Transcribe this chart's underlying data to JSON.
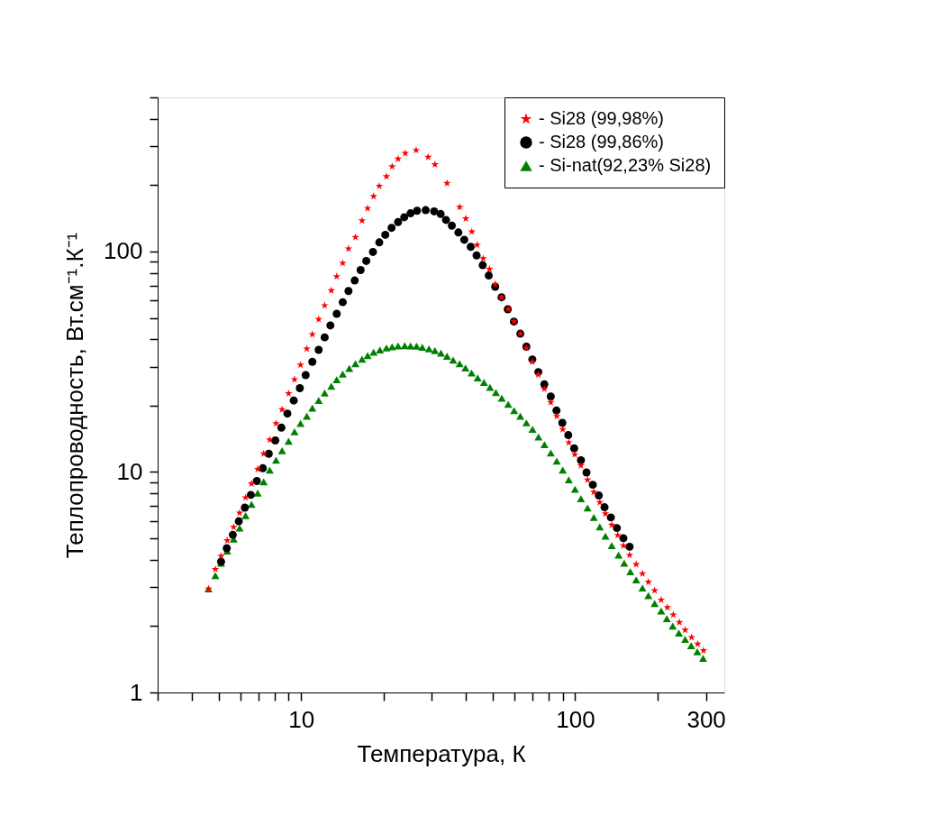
{
  "chart_data": {
    "type": "scatter",
    "xlabel": "Температура, К",
    "ylabel": "Теплопроводность, Вт.см⁻¹.К⁻¹",
    "log": "xy",
    "grid": false,
    "legend": "top right",
    "xlim": [
      3,
      350
    ],
    "ylim": [
      1,
      500
    ],
    "xticks": [
      {
        "value": 3,
        "label": null
      },
      {
        "value": 4,
        "label": null
      },
      {
        "value": 5,
        "label": null
      },
      {
        "value": 6,
        "label": null
      },
      {
        "value": 7,
        "label": null
      },
      {
        "value": 8,
        "label": null
      },
      {
        "value": 9,
        "label": null
      },
      10,
      {
        "value": 20,
        "label": null
      },
      {
        "value": 30,
        "label": null
      },
      {
        "value": 40,
        "label": null
      },
      {
        "value": 50,
        "label": null
      },
      {
        "value": 60,
        "label": null
      },
      {
        "value": 70,
        "label": null
      },
      {
        "value": 80,
        "label": null
      },
      {
        "value": 90,
        "label": null
      },
      100,
      {
        "value": 200,
        "label": null
      },
      300
    ],
    "yticks": [
      1,
      {
        "value": 2,
        "label": null
      },
      {
        "value": 3,
        "label": null
      },
      {
        "value": 4,
        "label": null
      },
      {
        "value": 5,
        "label": null
      },
      {
        "value": 6,
        "label": null
      },
      {
        "value": 7,
        "label": null
      },
      {
        "value": 8,
        "label": null
      },
      {
        "value": 9,
        "label": null
      },
      10,
      {
        "value": 20,
        "label": null
      },
      {
        "value": 30,
        "label": null
      },
      {
        "value": 40,
        "label": null
      },
      {
        "value": 50,
        "label": null
      },
      {
        "value": 60,
        "label": null
      },
      {
        "value": 70,
        "label": null
      },
      {
        "value": 80,
        "label": null
      },
      {
        "value": 90,
        "label": null
      },
      100,
      {
        "value": 200,
        "label": null
      },
      {
        "value": 300,
        "label": null
      },
      {
        "value": 400,
        "label": null
      },
      {
        "value": 500,
        "label": null
      }
    ],
    "series": [
      {
        "name": "- Si28 (99,98%)",
        "color": "#ff0000",
        "marker": "star",
        "x": [
          4.6,
          4.87,
          5.11,
          5.38,
          5.68,
          5.97,
          6.28,
          6.6,
          6.95,
          7.31,
          7.69,
          8.11,
          8.53,
          9.01,
          9.47,
          9.96,
          10.5,
          11.0,
          11.6,
          12.2,
          12.9,
          13.5,
          14.2,
          14.9,
          15.8,
          16.7,
          17.5,
          18.4,
          19.3,
          20.5,
          21.5,
          22.6,
          24.0,
          26.3,
          29.1,
          30.8,
          34.1,
          37.9,
          39.9,
          42.0,
          43.9,
          46.2,
          48.7,
          51.1,
          53.9,
          57.1,
          59.8,
          63.1,
          66.4,
          69.8,
          73.4,
          77.2,
          81.5,
          85.7,
          90.1,
          94.8,
          99.7,
          105,
          111,
          117,
          123,
          129,
          136,
          143,
          150,
          158,
          167,
          176,
          185,
          195,
          206,
          217,
          228,
          240,
          252,
          266,
          280,
          294
        ],
        "values": [
          2.95,
          3.62,
          4.16,
          4.89,
          5.62,
          6.52,
          7.65,
          8.85,
          10.3,
          12.1,
          14.0,
          16.6,
          19.2,
          22.7,
          26.3,
          30.6,
          36.2,
          42.1,
          49.2,
          56.9,
          66.5,
          77.1,
          88.5,
          103,
          116,
          138,
          157,
          178,
          198,
          219,
          243,
          263,
          279,
          288,
          268,
          248,
          204,
          159,
          141,
          123,
          107,
          93,
          83.2,
          71.1,
          62.0,
          54.7,
          48.1,
          42.4,
          36.5,
          31.6,
          27.6,
          23.8,
          20.7,
          17.9,
          15.6,
          13.6,
          12.0,
          10.7,
          9.21,
          8.11,
          7.28,
          6.47,
          5.75,
          5.17,
          4.63,
          4.2,
          3.81,
          3.46,
          3.17,
          2.9,
          2.63,
          2.43,
          2.25,
          2.08,
          1.92,
          1.78,
          1.66,
          1.55
        ]
      },
      {
        "name": "- Si28 (99,86%)",
        "color": "#000000",
        "marker": "circle",
        "x": [
          5.11,
          5.36,
          5.64,
          5.93,
          6.24,
          6.56,
          6.9,
          7.26,
          7.63,
          8.06,
          8.48,
          8.92,
          9.41,
          9.9,
          10.4,
          11.0,
          11.6,
          12.2,
          12.8,
          13.5,
          14.2,
          14.9,
          15.7,
          16.5,
          17.3,
          18.3,
          19.3,
          20.3,
          21.4,
          22.6,
          23.8,
          25.1,
          26.5,
          28.5,
          30.6,
          32.3,
          33.8,
          35.5,
          37.5,
          39.4,
          41.6,
          43.7,
          46.0,
          48.4,
          51.1,
          53.9,
          56.8,
          59.8,
          63.1,
          66.4,
          69.8,
          73.4,
          77.2,
          81.5,
          85.5,
          89.8,
          94.4,
          99.2,
          105,
          110,
          116,
          122,
          128,
          135,
          142,
          150,
          158
        ],
        "values": [
          3.92,
          4.51,
          5.19,
          5.98,
          6.89,
          7.87,
          9.1,
          10.4,
          12.1,
          13.9,
          15.9,
          18.4,
          21.1,
          24.0,
          27.5,
          31.6,
          35.8,
          40.8,
          46.2,
          52.2,
          58.9,
          66.2,
          73.9,
          82.4,
          90.6,
          99.5,
          110,
          119,
          128,
          136,
          143,
          149,
          153,
          154,
          152,
          148,
          139,
          131,
          122,
          113,
          105,
          96,
          86.7,
          77.8,
          69.2,
          62.0,
          54.7,
          48.1,
          42.4,
          37.0,
          32.4,
          28.4,
          25.0,
          22.0,
          19.0,
          16.7,
          14.7,
          12.8,
          11.3,
          9.95,
          8.75,
          7.82,
          6.92,
          6.22,
          5.57,
          5.01,
          4.58
        ]
      },
      {
        "name": "- Si-nat(92,23% Si28)",
        "color": "#008000",
        "marker": "triangle",
        "x": [
          4.6,
          4.87,
          5.11,
          5.38,
          5.68,
          5.97,
          6.28,
          6.6,
          6.95,
          7.31,
          7.69,
          8.11,
          8.53,
          9.01,
          9.47,
          9.96,
          10.5,
          11.0,
          11.6,
          12.2,
          12.9,
          13.5,
          14.2,
          15.0,
          15.8,
          16.7,
          17.5,
          18.4,
          19.4,
          20.5,
          21.5,
          22.6,
          23.9,
          25.1,
          26.4,
          27.7,
          29.3,
          30.8,
          32.4,
          34.1,
          35.9,
          37.9,
          39.8,
          41.9,
          44.1,
          46.5,
          48.9,
          51.4,
          54.0,
          57.0,
          59.9,
          63.1,
          66.4,
          69.9,
          73.5,
          77.3,
          81.5,
          85.7,
          90.1,
          94.8,
          99.9,
          105,
          111,
          117,
          123,
          129,
          136,
          144,
          151,
          159,
          167,
          176,
          185,
          195,
          206,
          216,
          227,
          239,
          252,
          265,
          279,
          293
        ],
        "values": [
          2.95,
          3.39,
          3.86,
          4.38,
          4.96,
          5.57,
          6.34,
          7.13,
          8.02,
          9.02,
          10.2,
          11.3,
          12.5,
          13.8,
          15.2,
          16.6,
          17.9,
          19.5,
          21.1,
          22.8,
          24.5,
          26.2,
          27.8,
          29.5,
          31.0,
          32.5,
          33.7,
          34.9,
          35.8,
          36.5,
          37.0,
          37.3,
          37.4,
          37.3,
          37.2,
          36.8,
          36.2,
          35.5,
          34.6,
          33.5,
          32.2,
          31.0,
          29.6,
          28.1,
          26.7,
          25.5,
          24.2,
          22.9,
          21.6,
          20.3,
          19.0,
          17.9,
          16.7,
          15.6,
          14.4,
          13.3,
          12.2,
          11.2,
          10.2,
          9.21,
          8.34,
          7.56,
          6.86,
          6.22,
          5.64,
          5.12,
          4.63,
          4.2,
          3.86,
          3.53,
          3.24,
          2.98,
          2.75,
          2.53,
          2.34,
          2.16,
          2.0,
          1.86,
          1.74,
          1.63,
          1.53,
          1.43
        ]
      }
    ]
  }
}
